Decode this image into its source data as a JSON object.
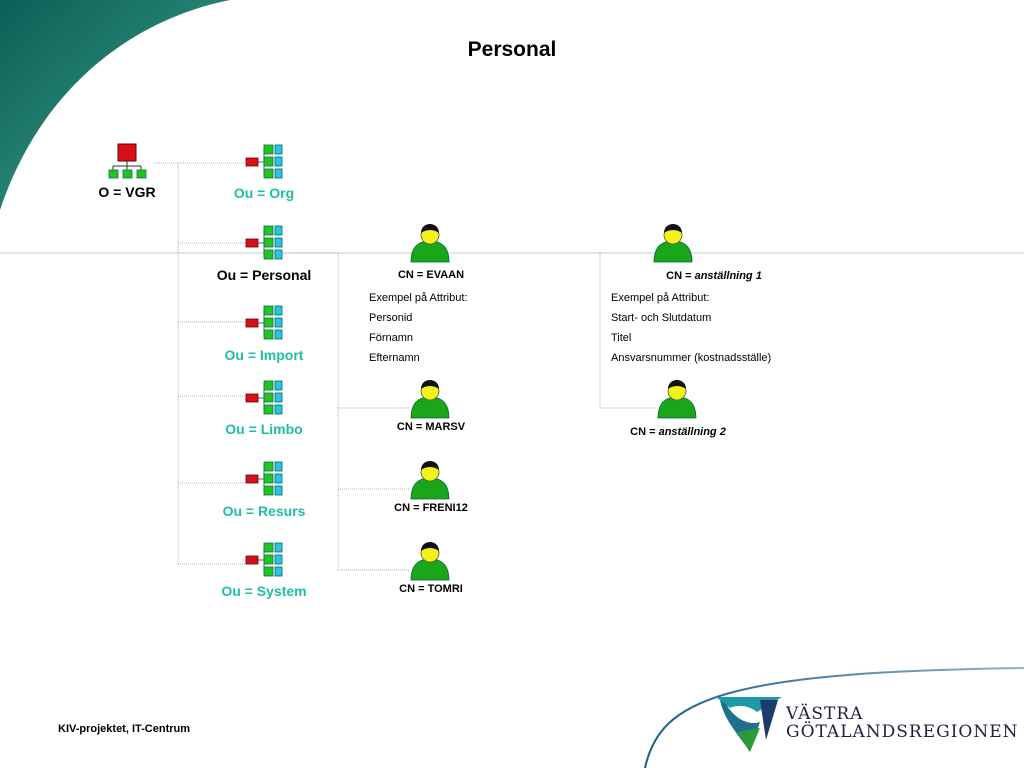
{
  "title": "Personal",
  "root": {
    "label": "O = VGR"
  },
  "ous": [
    {
      "label": "Ou = Org",
      "color": "#1fbf9f"
    },
    {
      "label": "Ou = Personal",
      "color": "#000000"
    },
    {
      "label": "Ou = Import",
      "color": "#1fbf9f"
    },
    {
      "label": "Ou = Limbo",
      "color": "#1fbf9f"
    },
    {
      "label": "Ou = Resurs",
      "color": "#1fbf9f"
    },
    {
      "label": "Ou = System",
      "color": "#1fbf9f"
    }
  ],
  "persons": [
    {
      "label": "CN = EVAAN"
    },
    {
      "label": "CN = MARSV"
    },
    {
      "label": "CN = FRENI12"
    },
    {
      "label": "CN = TOMRI"
    }
  ],
  "person_attributes": {
    "heading": "Exempel på Attribut:",
    "items": [
      "Personid",
      "Förnamn",
      "Efternamn"
    ]
  },
  "employments": [
    {
      "prefix": "CN = ",
      "name": "anställning 1"
    },
    {
      "prefix": "CN = ",
      "name": "anställning 2"
    }
  ],
  "employment_attributes": {
    "heading": "Exempel på Attribut:",
    "items": [
      "Start- och Slutdatum",
      "Titel",
      "Ansvarsnummer (kostnadsställe)"
    ]
  },
  "footer": "KIV-projektet, IT-Centrum",
  "logo": {
    "line1": "VÄSTRA",
    "line2": "GÖTALANDSREGIONEN"
  },
  "colors": {
    "accent_green": "#1fbf9f",
    "node_red": "#d8101a",
    "node_green": "#22c322",
    "node_cyan": "#26c6e6",
    "person_green": "#1aa51a",
    "face_yellow": "#f2f21a"
  }
}
